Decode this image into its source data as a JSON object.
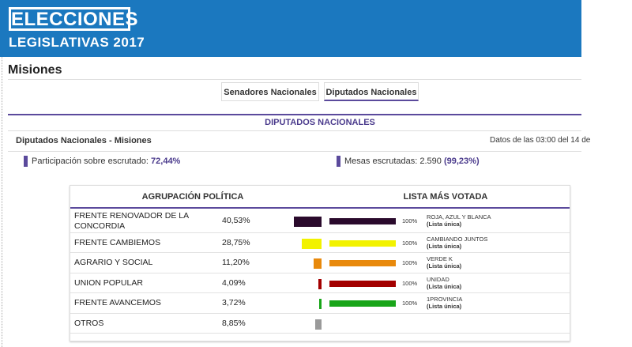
{
  "header": {
    "title": "ELECCIONES",
    "subtitle": "LEGISLATIVAS 2017"
  },
  "province": "Misiones",
  "tabs": [
    "Senadores Nacionales",
    "Diputados Nacionales"
  ],
  "section_title": "DIPUTADOS NACIONALES",
  "summary": {
    "title": "Diputados Nacionales - Misiones",
    "timestamp": "Datos de las 03:00 del 14 de",
    "participation_label": "Participación sobre escrutado:",
    "participation_value": "72,44%",
    "mesas_label": "Mesas escrutadas: 2.590",
    "mesas_value": "(99,23%)"
  },
  "table": {
    "headers": [
      "AGRUPACIÓN POLÍTICA",
      "LISTA MÁS VOTADA"
    ],
    "rows": [
      {
        "party": "FRENTE RENOVADOR DE LA CONCORDIA",
        "percent": "40,53%",
        "color": "#2a0a2c",
        "list_percent": "100%",
        "list_name": "ROJA, AZUL Y BLANCA",
        "list_note": "(Lista única)"
      },
      {
        "party": "FRENTE CAMBIEMOS",
        "percent": "28,75%",
        "color": "#f2f200",
        "list_percent": "100%",
        "list_name": "CAMBIANDO JUNTOS",
        "list_note": "(Lista única)"
      },
      {
        "party": "AGRARIO Y SOCIAL",
        "percent": "11,20%",
        "color": "#e8890c",
        "list_percent": "100%",
        "list_name": "VERDE K",
        "list_note": "(Lista única)"
      },
      {
        "party": "UNION POPULAR",
        "percent": "4,09%",
        "color": "#a30000",
        "list_percent": "100%",
        "list_name": "UNIDAD",
        "list_note": "(Lista única)"
      },
      {
        "party": "FRENTE AVANCEMOS",
        "percent": "3,72%",
        "color": "#19a519",
        "list_percent": "100%",
        "list_name": "1PROVINCIA",
        "list_note": "(Lista única)"
      },
      {
        "party": "OTROS",
        "percent": "8,85%",
        "color": "#9a9a9a"
      }
    ]
  }
}
